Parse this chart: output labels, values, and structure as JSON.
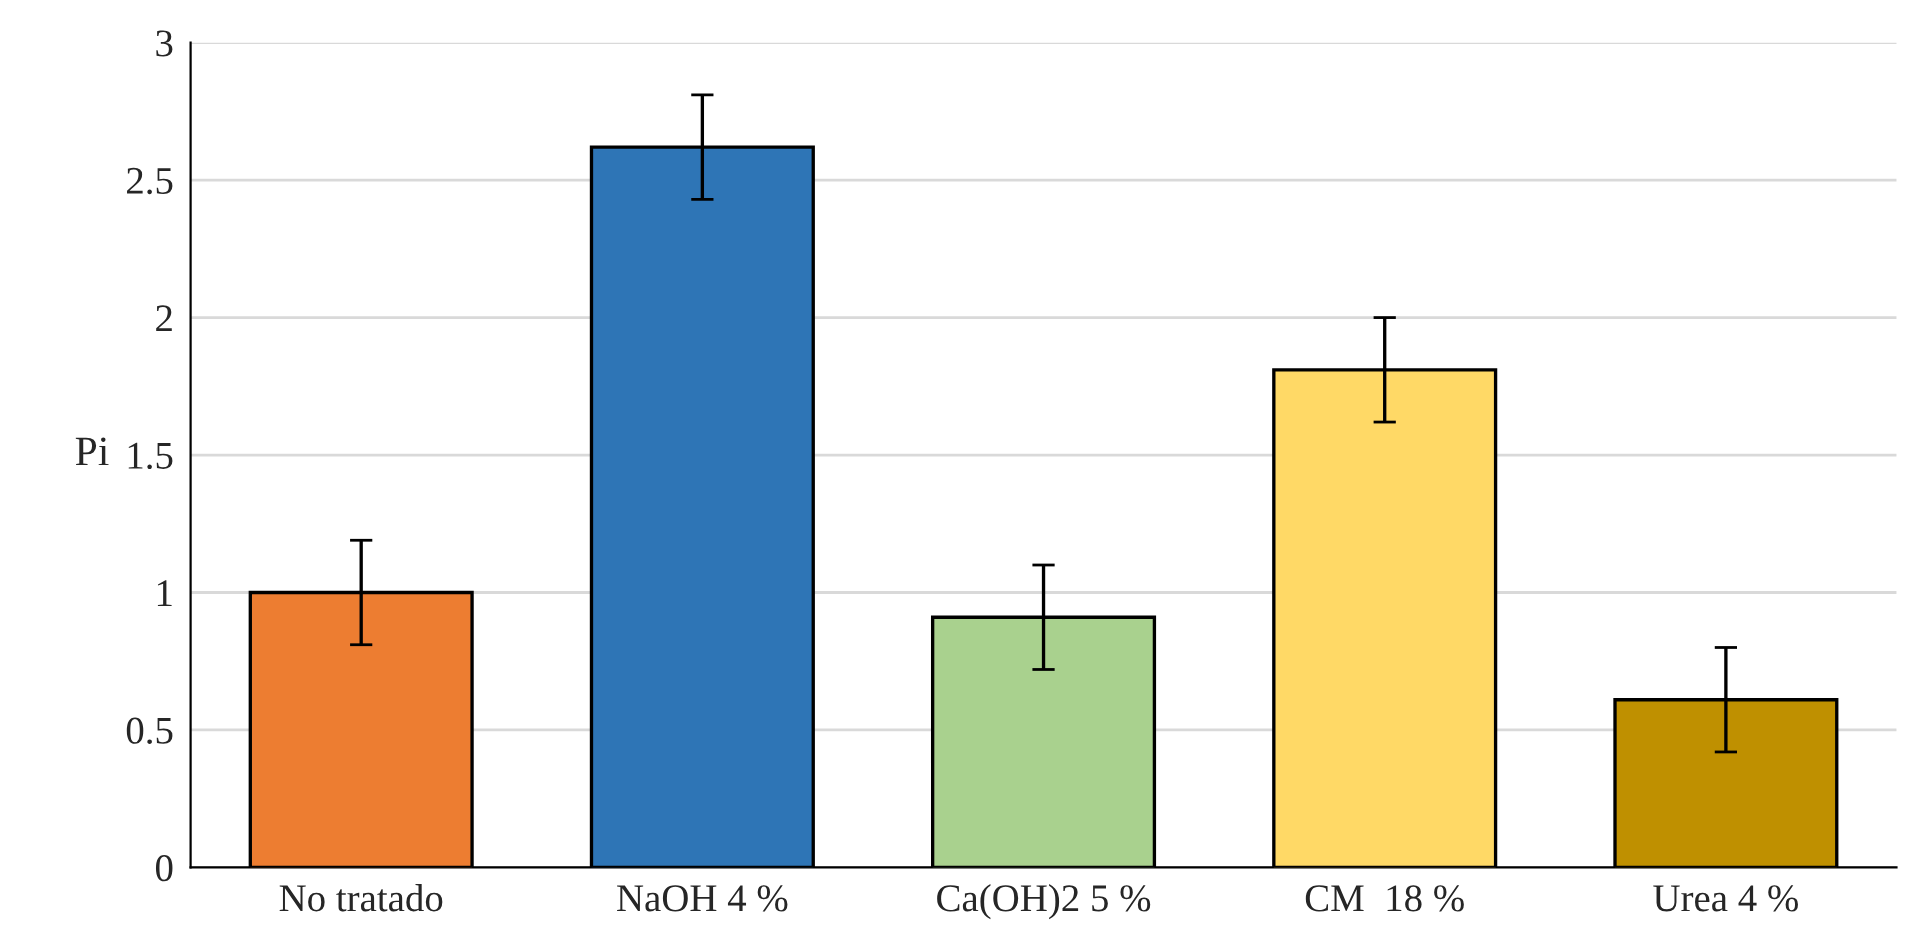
{
  "chart_data": {
    "type": "bar",
    "ylabel": "Pi",
    "categories": [
      "No tratado",
      "NaOH 4 %",
      "Ca(OH)2 5 %",
      "CM  18 %",
      "Urea 4 %"
    ],
    "values": [
      1.0,
      2.62,
      0.91,
      1.81,
      0.61
    ],
    "errors": [
      0.19,
      0.19,
      0.19,
      0.19,
      0.19
    ],
    "colors": [
      "#ed7d31",
      "#2e75b6",
      "#a9d18e",
      "#ffd966",
      "#bf9000"
    ],
    "ylim": [
      0,
      3
    ],
    "yticks": [
      0,
      0.5,
      1,
      1.5,
      2,
      2.5,
      3
    ],
    "grid": "y"
  }
}
